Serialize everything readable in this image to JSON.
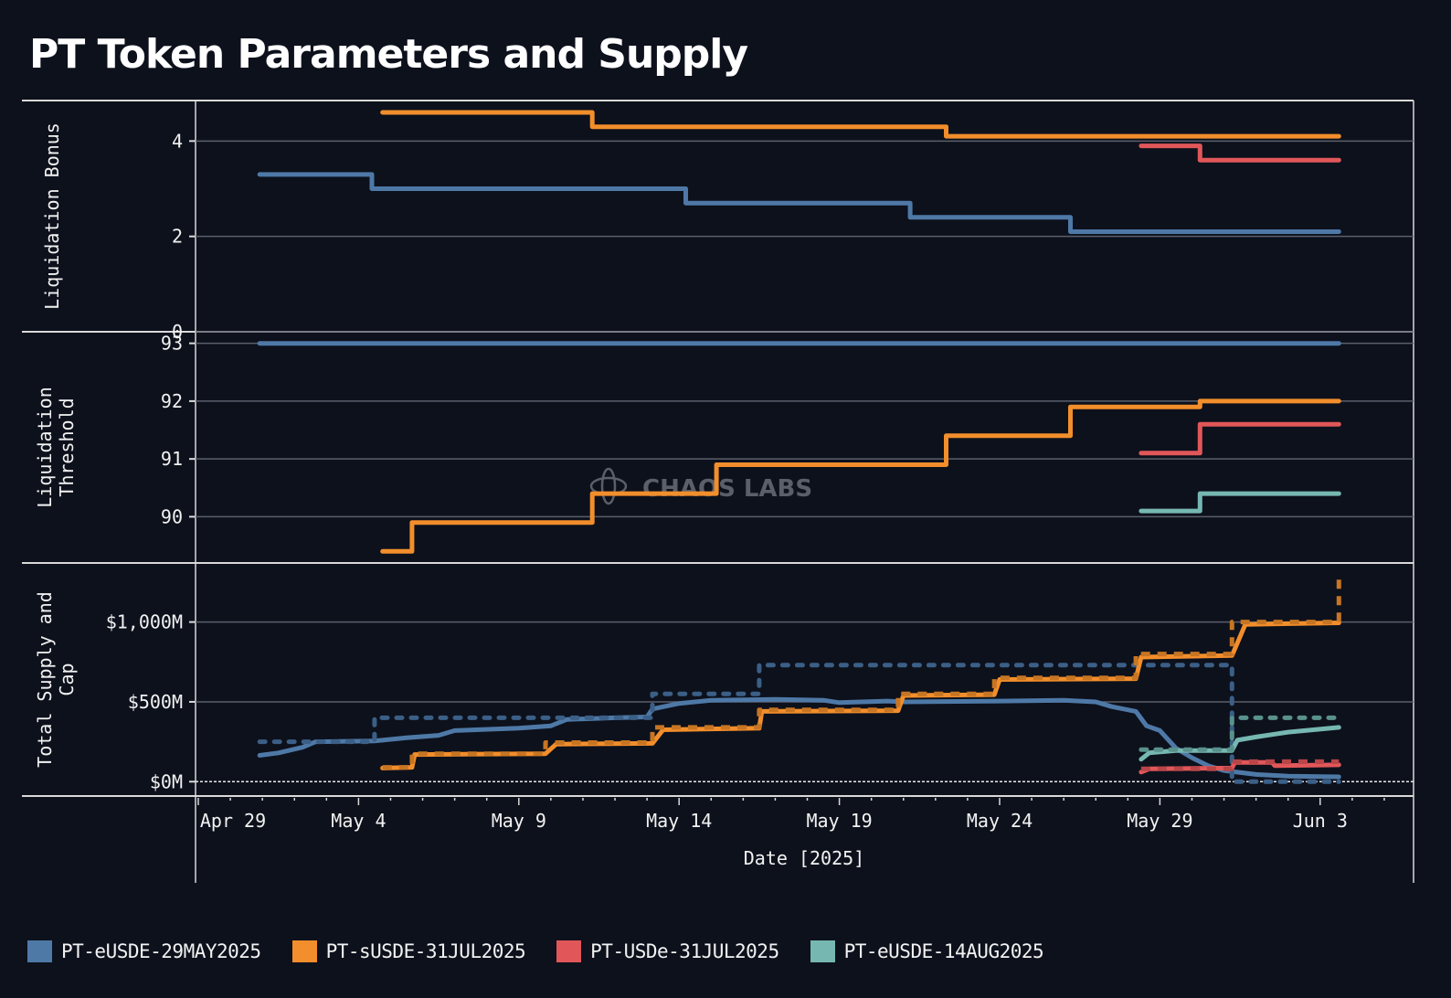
{
  "title": "PT Token Parameters and Supply",
  "watermark": "CHAOS LABS",
  "colors": {
    "background": "#0d111c",
    "grid": "#5a5f6b",
    "axis": "#d9d9d9",
    "text": "#f2f2f2"
  },
  "legend": [
    {
      "name": "PT-eUSDE-29MAY2025",
      "color": "#4e79a7"
    },
    {
      "name": "PT-sUSDE-31JUL2025",
      "color": "#f28e2b"
    },
    {
      "name": "PT-USDe-31JUL2025",
      "color": "#e15759"
    },
    {
      "name": "PT-eUSDE-14AUG2025",
      "color": "#76b7b2"
    }
  ],
  "chart_data": [
    {
      "type": "line",
      "step": true,
      "title": "",
      "ylabel": "Liquidation Bonus",
      "xlabel": "",
      "ylim": [
        0,
        4.85
      ],
      "yticks": [
        0,
        2,
        4
      ],
      "ytick_labels": [
        "0",
        "2",
        "4"
      ],
      "grid": true,
      "series": [
        {
          "name": "PT-eUSDE-29MAY2025",
          "color": "#4e79a7",
          "points": [
            [
              "2025-04-30 22:00",
              3.3
            ],
            [
              "2025-05-04 10:00",
              3.0
            ],
            [
              "2025-05-14 05:00",
              2.7
            ],
            [
              "2025-05-21 05:00",
              2.4
            ],
            [
              "2025-05-26 05:00",
              2.1
            ],
            [
              "2025-06-03 14:00",
              2.1
            ]
          ]
        },
        {
          "name": "PT-sUSDE-31JUL2025",
          "color": "#f28e2b",
          "points": [
            [
              "2025-05-04 18:00",
              4.6
            ],
            [
              "2025-05-11 07:00",
              4.3
            ],
            [
              "2025-05-22 08:00",
              4.1
            ],
            [
              "2025-06-03 14:00",
              4.1
            ]
          ]
        },
        {
          "name": "PT-USDe-31JUL2025",
          "color": "#e15759",
          "points": [
            [
              "2025-05-28 10:00",
              3.9
            ],
            [
              "2025-05-30 06:00",
              3.6
            ],
            [
              "2025-06-03 14:00",
              3.6
            ]
          ]
        }
      ]
    },
    {
      "type": "line",
      "step": true,
      "ylabel": "Liquidation Threshold",
      "xlabel": "",
      "ylim": [
        89.2,
        93.2
      ],
      "yticks": [
        90,
        91,
        92,
        93
      ],
      "ytick_labels": [
        "90",
        "91",
        "92",
        "93"
      ],
      "grid": true,
      "series": [
        {
          "name": "PT-eUSDE-29MAY2025",
          "color": "#4e79a7",
          "points": [
            [
              "2025-04-30 22:00",
              93.0
            ],
            [
              "2025-06-03 14:00",
              93.0
            ]
          ]
        },
        {
          "name": "PT-sUSDE-31JUL2025",
          "color": "#f28e2b",
          "points": [
            [
              "2025-05-04 18:00",
              89.4
            ],
            [
              "2025-05-05 16:00",
              89.9
            ],
            [
              "2025-05-11 07:00",
              90.4
            ],
            [
              "2025-05-15 04:00",
              90.9
            ],
            [
              "2025-05-22 08:00",
              91.4
            ],
            [
              "2025-05-26 05:00",
              91.9
            ],
            [
              "2025-05-30 06:00",
              92.0
            ],
            [
              "2025-06-03 14:00",
              92.0
            ]
          ]
        },
        {
          "name": "PT-USDe-31JUL2025",
          "color": "#e15759",
          "points": [
            [
              "2025-05-28 10:00",
              91.1
            ],
            [
              "2025-05-30 06:00",
              91.6
            ],
            [
              "2025-06-03 14:00",
              91.6
            ]
          ]
        },
        {
          "name": "PT-eUSDE-14AUG2025",
          "color": "#76b7b2",
          "points": [
            [
              "2025-05-28 10:00",
              90.1
            ],
            [
              "2025-05-30 06:00",
              90.4
            ],
            [
              "2025-06-03 14:00",
              90.4
            ]
          ]
        }
      ]
    },
    {
      "type": "line",
      "ylabel": "Total Supply and Cap",
      "xlabel": "Date [2025]",
      "ylim": [
        -90,
        1370
      ],
      "yticks": [
        0,
        500,
        1000
      ],
      "ytick_labels": [
        "$0M",
        "$500M",
        "$1,000M"
      ],
      "units": "USD millions",
      "grid": true,
      "zero_line": "dotted",
      "series": [
        {
          "name": "PT-eUSDE-29MAY2025 supply",
          "color": "#4e79a7",
          "style": "solid",
          "points": [
            [
              "2025-04-30 22:00",
              165
            ],
            [
              "2025-05-01 12:00",
              180
            ],
            [
              "2025-05-02 06:00",
              215
            ],
            [
              "2025-05-02 16:00",
              250
            ],
            [
              "2025-05-04 12:00",
              255
            ],
            [
              "2025-05-05 12:00",
              275
            ],
            [
              "2025-05-06 12:00",
              290
            ],
            [
              "2025-05-07 00:00",
              320
            ],
            [
              "2025-05-09 00:00",
              335
            ],
            [
              "2025-05-10 00:00",
              350
            ],
            [
              "2025-05-10 12:00",
              390
            ],
            [
              "2025-05-12 00:00",
              400
            ],
            [
              "2025-05-13 00:00",
              405
            ],
            [
              "2025-05-13 04:00",
              455
            ],
            [
              "2025-05-14 00:00",
              490
            ],
            [
              "2025-05-15 00:00",
              510
            ],
            [
              "2025-05-17 00:00",
              515
            ],
            [
              "2025-05-18 12:00",
              510
            ],
            [
              "2025-05-19 00:00",
              495
            ],
            [
              "2025-05-20 12:00",
              505
            ],
            [
              "2025-05-21 00:00",
              500
            ],
            [
              "2025-05-24 00:00",
              505
            ],
            [
              "2025-05-26 00:00",
              510
            ],
            [
              "2025-05-27 00:00",
              500
            ],
            [
              "2025-05-27 12:00",
              470
            ],
            [
              "2025-05-28 06:00",
              440
            ],
            [
              "2025-05-28 14:00",
              350
            ],
            [
              "2025-05-29 00:00",
              320
            ],
            [
              "2025-05-29 12:00",
              210
            ],
            [
              "2025-05-30 00:00",
              150
            ],
            [
              "2025-05-30 12:00",
              100
            ],
            [
              "2025-05-31 00:00",
              70
            ],
            [
              "2025-06-01 00:00",
              45
            ],
            [
              "2025-06-02 00:00",
              35
            ],
            [
              "2025-06-03 14:00",
              30
            ]
          ]
        },
        {
          "name": "PT-eUSDE-29MAY2025 cap",
          "color": "#3b5f86",
          "style": "dotted",
          "points": [
            [
              "2025-04-30 22:00",
              250
            ],
            [
              "2025-05-04 12:00",
              250
            ],
            [
              "2025-05-04 12:00",
              400
            ],
            [
              "2025-05-13 04:00",
              400
            ],
            [
              "2025-05-13 04:00",
              550
            ],
            [
              "2025-05-16 12:00",
              550
            ],
            [
              "2025-05-16 12:00",
              730
            ],
            [
              "2025-05-31 06:00",
              730
            ],
            [
              "2025-05-31 06:00",
              0
            ],
            [
              "2025-06-03 14:00",
              0
            ]
          ]
        },
        {
          "name": "PT-sUSDE-31JUL2025 supply",
          "color": "#f28e2b",
          "style": "solid",
          "points": [
            [
              "2025-05-04 18:00",
              85
            ],
            [
              "2025-05-05 16:00",
              90
            ],
            [
              "2025-05-05 18:00",
              170
            ],
            [
              "2025-05-09 20:00",
              175
            ],
            [
              "2025-05-10 04:00",
              235
            ],
            [
              "2025-05-13 04:00",
              240
            ],
            [
              "2025-05-13 12:00",
              325
            ],
            [
              "2025-05-16 12:00",
              335
            ],
            [
              "2025-05-16 14:00",
              440
            ],
            [
              "2025-05-20 20:00",
              445
            ],
            [
              "2025-05-21 00:00",
              540
            ],
            [
              "2025-05-23 20:00",
              545
            ],
            [
              "2025-05-24 00:00",
              640
            ],
            [
              "2025-05-28 06:00",
              645
            ],
            [
              "2025-05-28 10:00",
              780
            ],
            [
              "2025-05-31 06:00",
              790
            ],
            [
              "2025-05-31 16:00",
              985
            ],
            [
              "2025-06-03 14:00",
              995
            ]
          ]
        },
        {
          "name": "PT-sUSDE-31JUL2025 cap",
          "color": "#c77523",
          "style": "dashed",
          "points": [
            [
              "2025-05-04 18:00",
              90
            ],
            [
              "2025-05-05 16:00",
              90
            ],
            [
              "2025-05-05 16:00",
              175
            ],
            [
              "2025-05-09 20:00",
              175
            ],
            [
              "2025-05-09 20:00",
              245
            ],
            [
              "2025-05-13 04:00",
              245
            ],
            [
              "2025-05-13 04:00",
              340
            ],
            [
              "2025-05-16 12:00",
              340
            ],
            [
              "2025-05-16 12:00",
              450
            ],
            [
              "2025-05-20 20:00",
              450
            ],
            [
              "2025-05-20 20:00",
              550
            ],
            [
              "2025-05-23 20:00",
              550
            ],
            [
              "2025-05-23 20:00",
              650
            ],
            [
              "2025-05-28 06:00",
              650
            ],
            [
              "2025-05-28 06:00",
              800
            ],
            [
              "2025-05-31 06:00",
              800
            ],
            [
              "2025-05-31 06:00",
              1000
            ],
            [
              "2025-06-03 14:00",
              1000
            ],
            [
              "2025-06-03 14:00",
              1300
            ]
          ]
        },
        {
          "name": "PT-USDe-31JUL2025 supply",
          "color": "#e15759",
          "style": "solid",
          "points": [
            [
              "2025-05-28 10:00",
              60
            ],
            [
              "2025-05-28 16:00",
              80
            ],
            [
              "2025-05-31 06:00",
              85
            ],
            [
              "2025-05-31 08:00",
              120
            ],
            [
              "2025-06-01 12:00",
              120
            ],
            [
              "2025-06-01 14:00",
              100
            ],
            [
              "2025-06-03 14:00",
              105
            ]
          ]
        },
        {
          "name": "PT-USDe-31JUL2025 cap",
          "color": "#b84548",
          "style": "dashed",
          "points": [
            [
              "2025-05-28 10:00",
              80
            ],
            [
              "2025-05-31 06:00",
              80
            ],
            [
              "2025-05-31 06:00",
              125
            ],
            [
              "2025-06-03 14:00",
              125
            ]
          ]
        },
        {
          "name": "PT-eUSDE-14AUG2025 supply",
          "color": "#76b7b2",
          "style": "solid",
          "points": [
            [
              "2025-05-28 10:00",
              140
            ],
            [
              "2025-05-28 16:00",
              180
            ],
            [
              "2025-05-29 12:00",
              195
            ],
            [
              "2025-05-31 06:00",
              195
            ],
            [
              "2025-05-31 10:00",
              260
            ],
            [
              "2025-06-01 00:00",
              280
            ],
            [
              "2025-06-02 00:00",
              310
            ],
            [
              "2025-06-03 14:00",
              340
            ]
          ]
        },
        {
          "name": "PT-eUSDE-14AUG2025 cap",
          "color": "#5a918d",
          "style": "dotted",
          "points": [
            [
              "2025-05-28 10:00",
              200
            ],
            [
              "2025-05-31 06:00",
              200
            ],
            [
              "2025-05-31 06:00",
              400
            ],
            [
              "2025-06-03 14:00",
              400
            ]
          ]
        }
      ]
    }
  ],
  "xaxis": {
    "label": "Date [2025]",
    "start": "2025-04-29",
    "range": [
      "2025-04-29 00:00",
      "2025-06-05 00:00"
    ],
    "ticks": [
      {
        "date": "2025-04-29",
        "label": "Apr 29"
      },
      {
        "date": "2025-05-04",
        "label": "May 4"
      },
      {
        "date": "2025-05-09",
        "label": "May 9"
      },
      {
        "date": "2025-05-14",
        "label": "May 14"
      },
      {
        "date": "2025-05-19",
        "label": "May 19"
      },
      {
        "date": "2025-05-24",
        "label": "May 24"
      },
      {
        "date": "2025-05-29",
        "label": "May 29"
      },
      {
        "date": "2025-06-03",
        "label": "Jun 3"
      }
    ]
  }
}
